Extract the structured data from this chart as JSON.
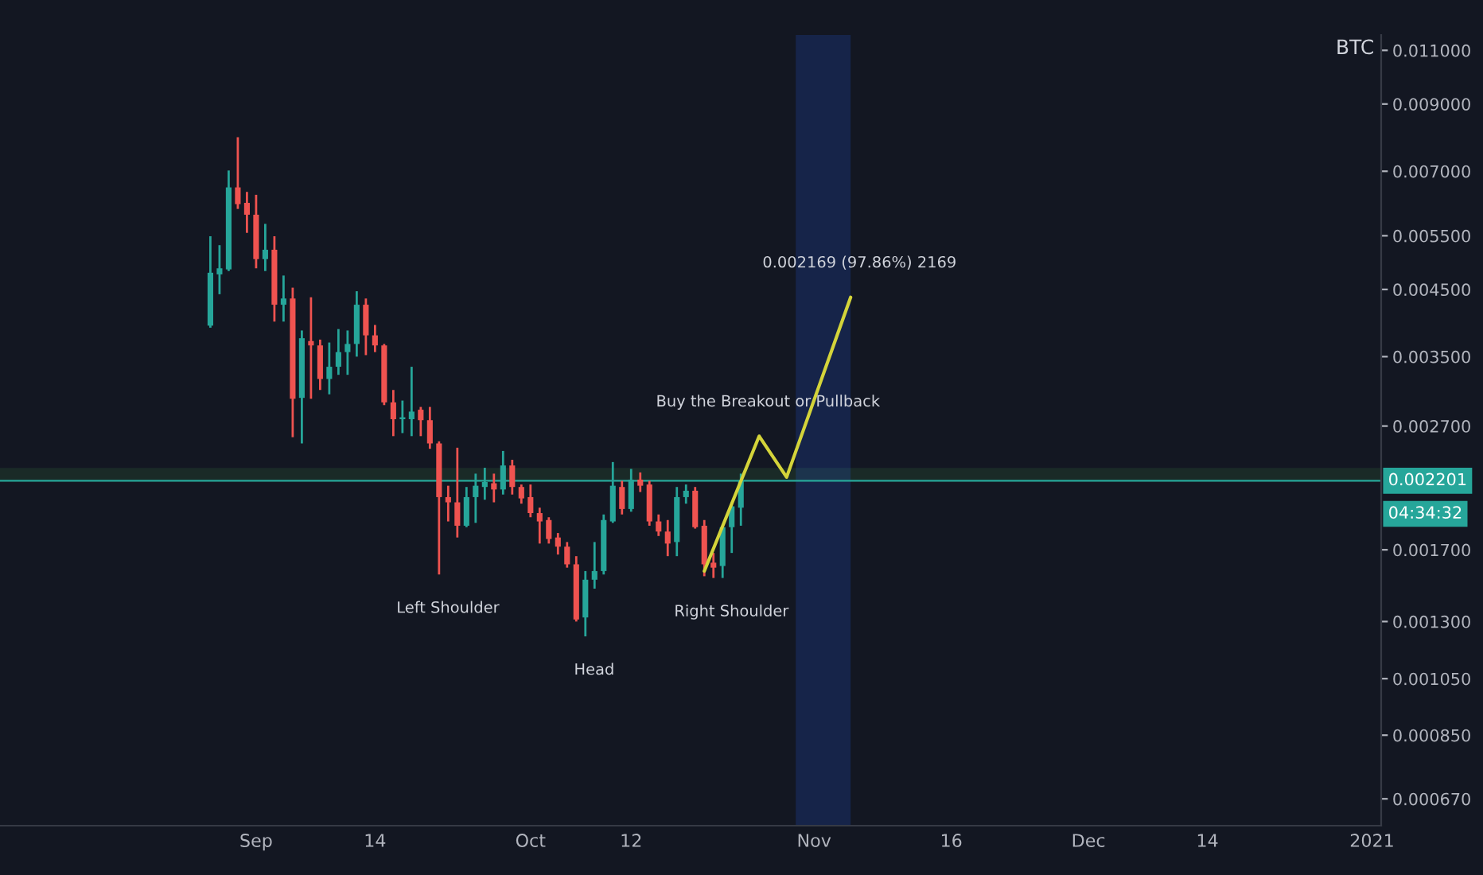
{
  "chart_data": {
    "type": "candlestick",
    "x": [
      "2020-08-27",
      "2020-08-28",
      "2020-08-29",
      "2020-08-30",
      "2020-08-31",
      "2020-09-01",
      "2020-09-02",
      "2020-09-03",
      "2020-09-04",
      "2020-09-05",
      "2020-09-06",
      "2020-09-07",
      "2020-09-08",
      "2020-09-09",
      "2020-09-10",
      "2020-09-11",
      "2020-09-12",
      "2020-09-13",
      "2020-09-14",
      "2020-09-15",
      "2020-09-16",
      "2020-09-17",
      "2020-09-18",
      "2020-09-19",
      "2020-09-20",
      "2020-09-21",
      "2020-09-22",
      "2020-09-23",
      "2020-09-24",
      "2020-09-25",
      "2020-09-26",
      "2020-09-27",
      "2020-09-28",
      "2020-09-29",
      "2020-09-30",
      "2020-10-01",
      "2020-10-02",
      "2020-10-03",
      "2020-10-04",
      "2020-10-05",
      "2020-10-06",
      "2020-10-07",
      "2020-10-08",
      "2020-10-09",
      "2020-10-10",
      "2020-10-11",
      "2020-10-12",
      "2020-10-13",
      "2020-10-14",
      "2020-10-15",
      "2020-10-16",
      "2020-10-17",
      "2020-10-18",
      "2020-10-19",
      "2020-10-20",
      "2020-10-21",
      "2020-10-22",
      "2020-10-23",
      "2020-10-24"
    ],
    "ohlc": [
      [
        0.00393,
        0.00549,
        0.0039,
        0.00479
      ],
      [
        0.00476,
        0.00531,
        0.00442,
        0.00487
      ],
      [
        0.00485,
        0.00702,
        0.00482,
        0.00659
      ],
      [
        0.00659,
        0.00795,
        0.00608,
        0.00619
      ],
      [
        0.00622,
        0.00648,
        0.00556,
        0.00595
      ],
      [
        0.00595,
        0.00641,
        0.00487,
        0.00504
      ],
      [
        0.00504,
        0.00575,
        0.00482,
        0.00522
      ],
      [
        0.00522,
        0.00549,
        0.00399,
        0.00425
      ],
      [
        0.00425,
        0.00474,
        0.00399,
        0.00435
      ],
      [
        0.00435,
        0.00453,
        0.00259,
        0.00299
      ],
      [
        0.003,
        0.00386,
        0.00253,
        0.00375
      ],
      [
        0.00371,
        0.00437,
        0.00299,
        0.00365
      ],
      [
        0.00365,
        0.00373,
        0.00309,
        0.00322
      ],
      [
        0.00322,
        0.00369,
        0.00304,
        0.00337
      ],
      [
        0.00337,
        0.00388,
        0.00327,
        0.00356
      ],
      [
        0.00356,
        0.00386,
        0.00327,
        0.00367
      ],
      [
        0.00367,
        0.00447,
        0.0035,
        0.00425
      ],
      [
        0.00425,
        0.00435,
        0.00352,
        0.00379
      ],
      [
        0.00379,
        0.00394,
        0.00356,
        0.00365
      ],
      [
        0.00365,
        0.00367,
        0.00292,
        0.00295
      ],
      [
        0.00295,
        0.00309,
        0.0026,
        0.00277
      ],
      [
        0.00277,
        0.00297,
        0.00263,
        0.00279
      ],
      [
        0.00277,
        0.00337,
        0.0026,
        0.00285
      ],
      [
        0.00287,
        0.0029,
        0.0026,
        0.00276
      ],
      [
        0.00276,
        0.0029,
        0.00248,
        0.00253
      ],
      [
        0.00253,
        0.00255,
        0.00155,
        0.00207
      ],
      [
        0.00207,
        0.00216,
        0.00189,
        0.00203
      ],
      [
        0.00203,
        0.00249,
        0.00178,
        0.00186
      ],
      [
        0.00186,
        0.00215,
        0.00185,
        0.00207
      ],
      [
        0.00207,
        0.00226,
        0.00188,
        0.00216
      ],
      [
        0.00215,
        0.00231,
        0.00205,
        0.00219
      ],
      [
        0.00218,
        0.00226,
        0.00203,
        0.00213
      ],
      [
        0.00213,
        0.00246,
        0.00209,
        0.00233
      ],
      [
        0.00233,
        0.00238,
        0.00209,
        0.00215
      ],
      [
        0.00215,
        0.00217,
        0.00202,
        0.00206
      ],
      [
        0.00207,
        0.00217,
        0.00192,
        0.00195
      ],
      [
        0.00195,
        0.00199,
        0.00174,
        0.00189
      ],
      [
        0.0019,
        0.00192,
        0.00174,
        0.00177
      ],
      [
        0.00178,
        0.00181,
        0.00167,
        0.00172
      ],
      [
        0.00172,
        0.00175,
        0.00159,
        0.00161
      ],
      [
        0.00161,
        0.00166,
        0.0013,
        0.00131
      ],
      [
        0.00132,
        0.00157,
        0.00123,
        0.00152
      ],
      [
        0.00152,
        0.00175,
        0.00147,
        0.00157
      ],
      [
        0.00157,
        0.00194,
        0.00155,
        0.0019
      ],
      [
        0.00189,
        0.00236,
        0.00188,
        0.00216
      ],
      [
        0.00215,
        0.0022,
        0.00194,
        0.00198
      ],
      [
        0.00198,
        0.0023,
        0.00196,
        0.00221
      ],
      [
        0.00221,
        0.00227,
        0.00211,
        0.00216
      ],
      [
        0.00217,
        0.0022,
        0.00186,
        0.00189
      ],
      [
        0.00189,
        0.00194,
        0.00179,
        0.00182
      ],
      [
        0.00182,
        0.0019,
        0.00166,
        0.00174
      ],
      [
        0.00175,
        0.00215,
        0.00166,
        0.00207
      ],
      [
        0.00207,
        0.00217,
        0.00202,
        0.00212
      ],
      [
        0.00212,
        0.00215,
        0.00184,
        0.00185
      ],
      [
        0.00186,
        0.0019,
        0.00154,
        0.00161
      ],
      [
        0.00162,
        0.00168,
        0.00153,
        0.00159
      ],
      [
        0.0016,
        0.00186,
        0.00153,
        0.00185
      ],
      [
        0.00185,
        0.00203,
        0.00168,
        0.002
      ],
      [
        0.00199,
        0.00226,
        0.00186,
        0.002201
      ]
    ],
    "colors": [
      "#26a69a",
      "#26a69a",
      "#26a69a",
      "#ef5350",
      "#ef5350",
      "#ef5350",
      "#26a69a",
      "#ef5350",
      "#26a69a",
      "#ef5350",
      "#26a69a",
      "#ef5350",
      "#ef5350",
      "#26a69a",
      "#26a69a",
      "#26a69a",
      "#26a69a",
      "#ef5350",
      "#ef5350",
      "#ef5350",
      "#ef5350",
      "#26a69a",
      "#26a69a",
      "#ef5350",
      "#ef5350",
      "#ef5350",
      "#ef5350",
      "#ef5350",
      "#26a69a",
      "#26a69a",
      "#26a69a",
      "#ef5350",
      "#26a69a",
      "#ef5350",
      "#ef5350",
      "#ef5350",
      "#ef5350",
      "#ef5350",
      "#ef5350",
      "#ef5350",
      "#ef5350",
      "#26a69a",
      "#26a69a",
      "#26a69a",
      "#26a69a",
      "#ef5350",
      "#26a69a",
      "#ef5350",
      "#ef5350",
      "#ef5350",
      "#ef5350",
      "#26a69a",
      "#26a69a",
      "#ef5350",
      "#ef5350",
      "#ef5350",
      "#26a69a",
      "#26a69a",
      "#26a69a"
    ],
    "series": [
      {
        "type": "line",
        "x": [
          "2020-10-20",
          "2020-10-26",
          "2020-10-29",
          "2020-11-05"
        ],
        "values": [
          0.00157,
          0.0026,
          0.00223,
          0.00437
        ],
        "color": "#d4d43a"
      }
    ],
    "log": "y",
    "xlim": [
      "2020-08-04",
      "2021-01-02"
    ],
    "xticks": [
      {
        "value": "2020-09-01",
        "label": "Sep"
      },
      {
        "value": "2020-09-14",
        "label": "14"
      },
      {
        "value": "2020-10-01",
        "label": "Oct"
      },
      {
        "value": "2020-10-12",
        "label": "12"
      },
      {
        "value": "2020-11-01",
        "label": "Nov"
      },
      {
        "value": "2020-11-16",
        "label": "16"
      },
      {
        "value": "2020-12-01",
        "label": "Dec"
      },
      {
        "value": "2020-12-14",
        "label": "14"
      },
      {
        "value": "2021-01-01",
        "label": "2021"
      }
    ],
    "ylim": [
      0.000606,
      0.01165
    ],
    "yticks": [
      {
        "value": 0.011,
        "label": "0.011000"
      },
      {
        "value": 0.009,
        "label": "0.009000"
      },
      {
        "value": 0.007,
        "label": "0.007000"
      },
      {
        "value": 0.0055,
        "label": "0.005500"
      },
      {
        "value": 0.0045,
        "label": "0.004500"
      },
      {
        "value": 0.0035,
        "label": "0.003500"
      },
      {
        "value": 0.0027,
        "label": "0.002700"
      },
      {
        "value": 0.0017,
        "label": "0.001700"
      },
      {
        "value": 0.0013,
        "label": "0.001300"
      },
      {
        "value": 0.00105,
        "label": "0.001050"
      },
      {
        "value": 0.00085,
        "label": "0.000850"
      },
      {
        "value": 0.00067,
        "label": "0.000670"
      }
    ],
    "ref_lines": [
      {
        "axis": "y",
        "value": 0.002201,
        "label": "0.002201",
        "color": "#26a69a"
      }
    ],
    "bands": [
      {
        "axis": "y",
        "from": 0.0022,
        "to": 0.0023,
        "color": "#4caf50"
      },
      {
        "axis": "x",
        "from": "2020-10-30",
        "to": "2020-11-05",
        "color": "#2962ff"
      }
    ],
    "annotations": [
      "BTC",
      "04:34:32",
      {
        "text": "Left Shoulder",
        "x": "2020-09-21",
        "y": 0.00155
      },
      {
        "text": "Head",
        "x": "2020-10-07",
        "y": 0.00123
      },
      {
        "text": "Right Shoulder",
        "x": "2020-10-22",
        "y": 0.00153
      },
      {
        "text": "Buy the Breakout or Pullback",
        "x": "2020-10-26",
        "y": 0.0026
      },
      {
        "text": "0.002169 (97.86%) 2169",
        "x": "2020-11-05",
        "y": 0.00437
      }
    ],
    "grid": false,
    "legend": false
  }
}
